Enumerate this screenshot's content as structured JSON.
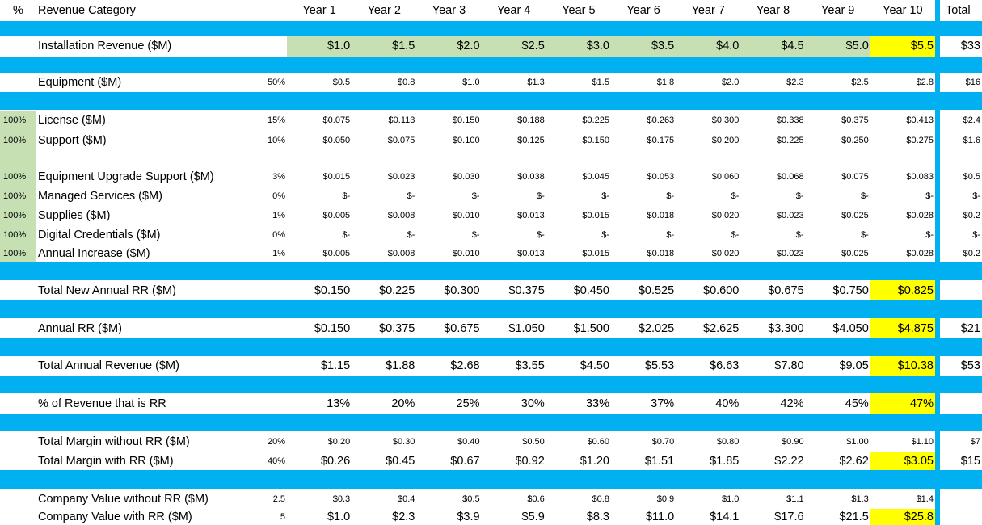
{
  "header": {
    "pct_label": "%",
    "category_label": "Revenue Category",
    "years": [
      "Year 1",
      "Year 2",
      "Year 3",
      "Year 4",
      "Year 5",
      "Year 6",
      "Year 7",
      "Year 8",
      "Year 9",
      "Year 10"
    ],
    "total": "Total"
  },
  "rows": [
    {
      "label": "Installation Revenue ($M)",
      "values": [
        "$1.0",
        "$1.5",
        "$2.0",
        "$2.5",
        "$3.0",
        "$3.5",
        "$4.0",
        "$4.5",
        "$5.0",
        "$5.5"
      ],
      "total": "$33"
    },
    {
      "label": "Equipment ($M)",
      "factor": "50%",
      "values": [
        "$0.5",
        "$0.8",
        "$1.0",
        "$1.3",
        "$1.5",
        "$1.8",
        "$2.0",
        "$2.3",
        "$2.5",
        "$2.8"
      ],
      "total": "$16"
    },
    {
      "pct": "100%",
      "label": "License ($M)",
      "factor": "15%",
      "values": [
        "$0.075",
        "$0.113",
        "$0.150",
        "$0.188",
        "$0.225",
        "$0.263",
        "$0.300",
        "$0.338",
        "$0.375",
        "$0.413"
      ],
      "total": "$2.4"
    },
    {
      "pct": "100%",
      "label": "Support ($M)",
      "factor": "10%",
      "values": [
        "$0.050",
        "$0.075",
        "$0.100",
        "$0.125",
        "$0.150",
        "$0.175",
        "$0.200",
        "$0.225",
        "$0.250",
        "$0.275"
      ],
      "total": "$1.6"
    },
    {
      "pct": "100%",
      "label": "Equipment Upgrade Support ($M)",
      "factor": "3%",
      "values": [
        "$0.015",
        "$0.023",
        "$0.030",
        "$0.038",
        "$0.045",
        "$0.053",
        "$0.060",
        "$0.068",
        "$0.075",
        "$0.083"
      ],
      "total": "$0.5"
    },
    {
      "pct": "100%",
      "label": "Managed Services ($M)",
      "factor": "0%",
      "values": [
        "$-",
        "$-",
        "$-",
        "$-",
        "$-",
        "$-",
        "$-",
        "$-",
        "$-",
        "$-"
      ],
      "total": "$-"
    },
    {
      "pct": "100%",
      "label": "Supplies ($M)",
      "factor": "1%",
      "values": [
        "$0.005",
        "$0.008",
        "$0.010",
        "$0.013",
        "$0.015",
        "$0.018",
        "$0.020",
        "$0.023",
        "$0.025",
        "$0.028"
      ],
      "total": "$0.2"
    },
    {
      "pct": "100%",
      "label": "Digital Credentials ($M)",
      "factor": "0%",
      "values": [
        "$-",
        "$-",
        "$-",
        "$-",
        "$-",
        "$-",
        "$-",
        "$-",
        "$-",
        "$-"
      ],
      "total": "$-"
    },
    {
      "pct": "100%",
      "label": "Annual Increase ($M)",
      "factor": "1%",
      "values": [
        "$0.005",
        "$0.008",
        "$0.010",
        "$0.013",
        "$0.015",
        "$0.018",
        "$0.020",
        "$0.023",
        "$0.025",
        "$0.028"
      ],
      "total": "$0.2"
    },
    {
      "label": "Total New Annual RR ($M)",
      "values": [
        "$0.150",
        "$0.225",
        "$0.300",
        "$0.375",
        "$0.450",
        "$0.525",
        "$0.600",
        "$0.675",
        "$0.750",
        "$0.825"
      ]
    },
    {
      "label": "Annual RR ($M)",
      "values": [
        "$0.150",
        "$0.375",
        "$0.675",
        "$1.050",
        "$1.500",
        "$2.025",
        "$2.625",
        "$3.300",
        "$4.050",
        "$4.875"
      ],
      "total": "$21"
    },
    {
      "label": "Total Annual Revenue ($M)",
      "values": [
        "$1.15",
        "$1.88",
        "$2.68",
        "$3.55",
        "$4.50",
        "$5.53",
        "$6.63",
        "$7.80",
        "$9.05",
        "$10.38"
      ],
      "total": "$53"
    },
    {
      "label": "% of Revenue that is RR",
      "values": [
        "13%",
        "20%",
        "25%",
        "30%",
        "33%",
        "37%",
        "40%",
        "42%",
        "45%",
        "47%"
      ]
    },
    {
      "label": "Total Margin without RR ($M)",
      "factor": "20%",
      "values": [
        "$0.20",
        "$0.30",
        "$0.40",
        "$0.50",
        "$0.60",
        "$0.70",
        "$0.80",
        "$0.90",
        "$1.00",
        "$1.10"
      ],
      "total": "$7"
    },
    {
      "label": "Total Margin with RR ($M)",
      "factor": "40%",
      "values": [
        "$0.26",
        "$0.45",
        "$0.67",
        "$0.92",
        "$1.20",
        "$1.51",
        "$1.85",
        "$2.22",
        "$2.62",
        "$3.05"
      ],
      "total": "$15"
    },
    {
      "label": "Company Value without RR ($M)",
      "factor": "2.5",
      "values": [
        "$0.3",
        "$0.4",
        "$0.5",
        "$0.6",
        "$0.8",
        "$0.9",
        "$1.0",
        "$1.1",
        "$1.3",
        "$1.4"
      ]
    },
    {
      "label": "Company Value with RR ($M)",
      "factor": "5",
      "values": [
        "$1.0",
        "$2.3",
        "$3.9",
        "$5.9",
        "$8.3",
        "$11.0",
        "$14.1",
        "$17.6",
        "$21.5",
        "$25.8"
      ]
    }
  ]
}
